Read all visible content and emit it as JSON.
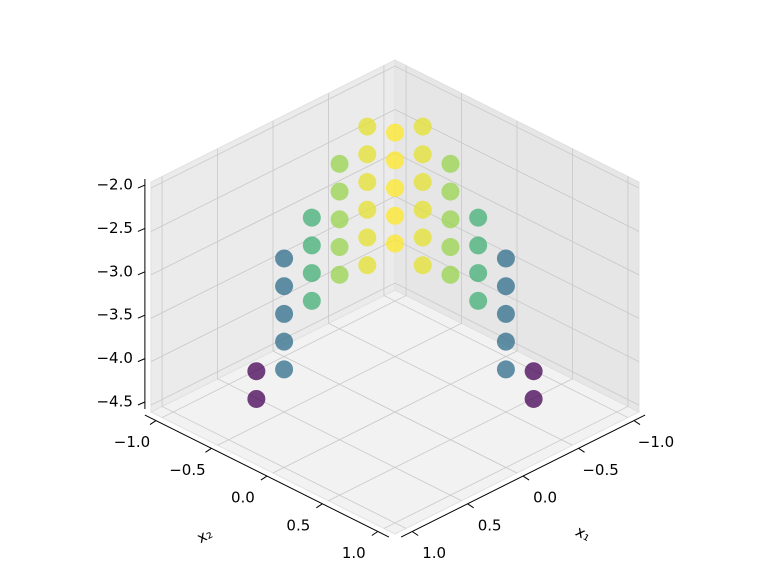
{
  "chart_data": {
    "type": "scatter3d",
    "xlabel": "x₁",
    "ylabel": "x₂",
    "x": [
      -1,
      -0.75,
      -0.75,
      -0.75,
      -0.75,
      -0.75,
      -0.5,
      -0.5,
      -0.5,
      -0.5,
      -0.5,
      -0.5,
      -0.5,
      -0.25,
      -0.25,
      -0.25,
      -0.25,
      -0.25,
      -0.25,
      -0.25,
      0,
      0,
      0,
      0,
      0,
      0,
      0,
      0,
      0,
      0.25,
      0.25,
      0.25,
      0.25,
      0.25,
      0.25,
      0.25,
      0.5,
      0.5,
      0.5,
      0.5,
      0.5,
      0.5,
      0.5,
      0.75,
      0.75,
      0.75,
      0.75,
      0.75,
      1
    ],
    "y": [
      0,
      -0.5,
      -0.25,
      0,
      0.25,
      0.5,
      -0.75,
      -0.5,
      -0.25,
      0,
      0.25,
      0.5,
      0.75,
      -0.75,
      -0.5,
      -0.25,
      0,
      0.25,
      0.5,
      0.75,
      -1,
      -0.75,
      -0.5,
      -0.25,
      0,
      0.25,
      0.5,
      0.75,
      1,
      -0.75,
      -0.5,
      -0.25,
      0,
      0.25,
      0.5,
      0.75,
      -0.75,
      -0.5,
      -0.25,
      0,
      0.25,
      0.5,
      0.75,
      -0.5,
      -0.25,
      0,
      0.25,
      0.5,
      0
    ],
    "z": [
      -3.45,
      -2.09,
      -2.36,
      -2.82,
      -3.45,
      -4.27,
      -2.09,
      -2.0,
      -2.09,
      -2.36,
      -2.82,
      -3.45,
      -4.27,
      -2.36,
      -2.09,
      -2.0,
      -2.09,
      -2.36,
      -2.82,
      -3.45,
      -3.45,
      -2.82,
      -2.36,
      -2.09,
      -2.0,
      -2.09,
      -2.36,
      -2.82,
      -3.45,
      -3.45,
      -2.82,
      -2.36,
      -2.09,
      -2.0,
      -2.09,
      -2.36,
      -4.27,
      -3.45,
      -2.82,
      -2.36,
      -2.09,
      -2.0,
      -2.09,
      -4.27,
      -3.45,
      -2.82,
      -2.36,
      -2.09,
      -3.45
    ],
    "colormap": "viridis",
    "xlim": [
      -1.1,
      1.1
    ],
    "ylim": [
      -1.1,
      1.1
    ],
    "zlim": [
      -4.58,
      -1.93
    ],
    "xticks": [
      {
        "value": -1,
        "label": "−1.0"
      },
      {
        "value": -0.5,
        "label": "−0.5"
      },
      {
        "value": 0,
        "label": "0.0"
      },
      {
        "value": 0.5,
        "label": "0.5"
      },
      {
        "value": 1,
        "label": "1.0"
      }
    ],
    "yticks": [
      {
        "value": -1,
        "label": "−1.0"
      },
      {
        "value": -0.5,
        "label": "−0.5"
      },
      {
        "value": 0,
        "label": "0.0"
      },
      {
        "value": 0.5,
        "label": "0.5"
      },
      {
        "value": 1,
        "label": "1.0"
      }
    ],
    "zticks": [
      {
        "value": -4.5,
        "label": "−4.5"
      },
      {
        "value": -4,
        "label": "−4.0"
      },
      {
        "value": -3.5,
        "label": "−3.5"
      },
      {
        "value": -3,
        "label": "−3.0"
      },
      {
        "value": -2.5,
        "label": "−2.5"
      },
      {
        "value": -2,
        "label": "−2.0"
      }
    ],
    "grid": true
  }
}
